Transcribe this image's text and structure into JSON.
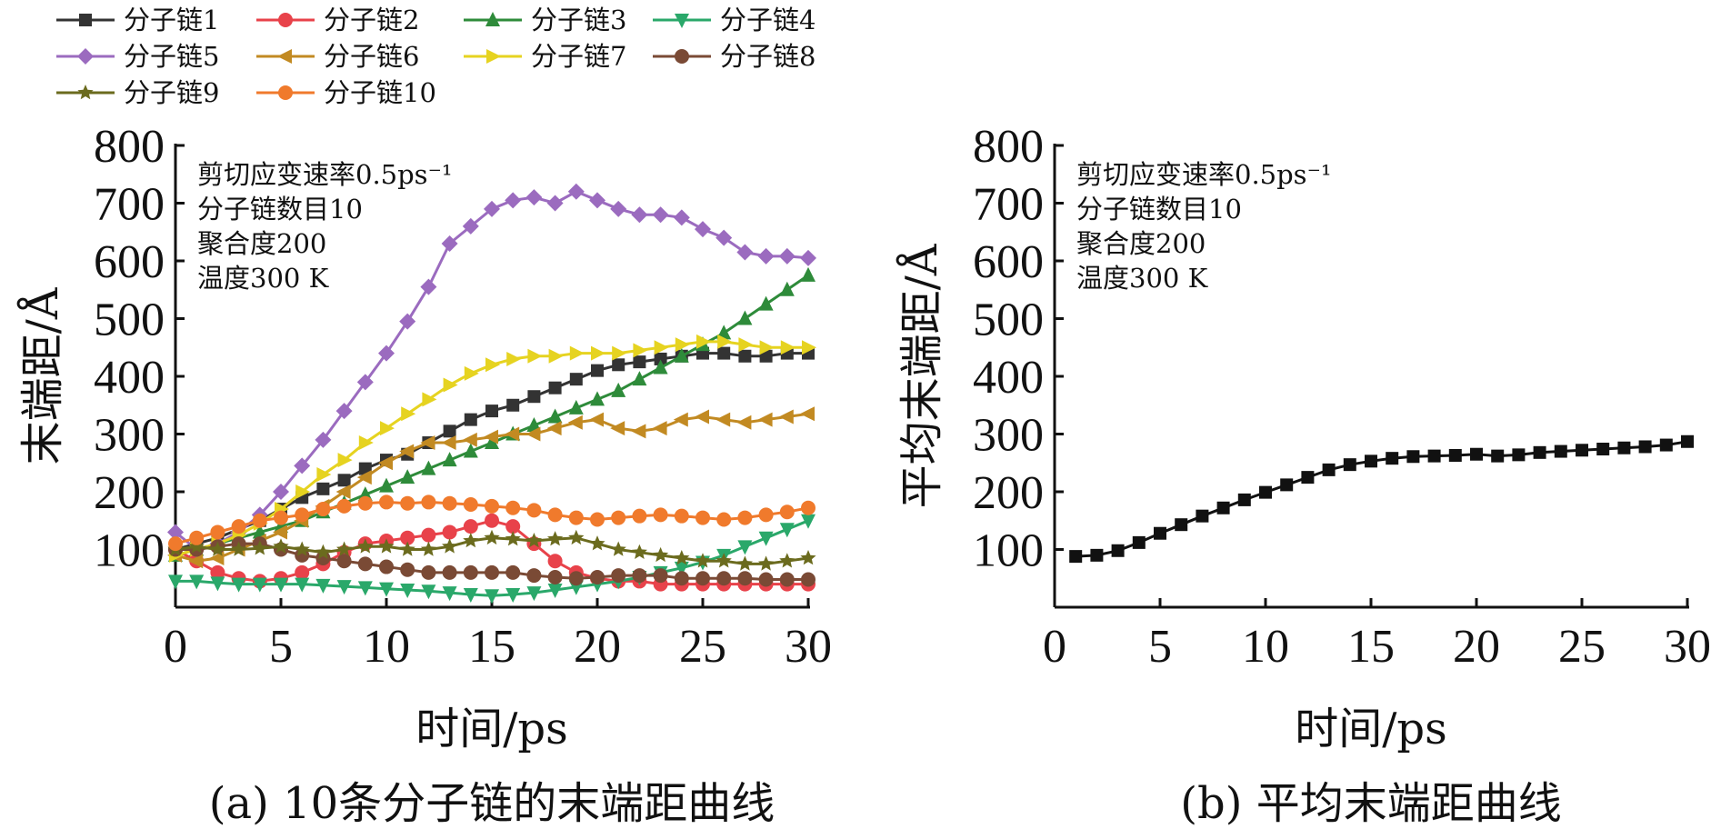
{
  "chart_data": [
    {
      "type": "line",
      "panel": "a",
      "caption": "(a) 10条分子链的末端距曲线",
      "xlabel": "时间/ps",
      "ylabel": "末端距/Å",
      "xlim": [
        0,
        30
      ],
      "ylim": [
        0,
        800
      ],
      "xticks": [
        "0",
        "5",
        "10",
        "15",
        "20",
        "25",
        "30"
      ],
      "yticks": [
        "100",
        "200",
        "300",
        "400",
        "500",
        "600",
        "700",
        "800"
      ],
      "annotation": [
        "剪切应变速率0.5ps⁻¹",
        "分子链数目10",
        "聚合度200",
        "温度300 K"
      ],
      "legend_position": "top",
      "x": [
        0,
        1,
        2,
        3,
        4,
        5,
        6,
        7,
        8,
        9,
        10,
        11,
        12,
        13,
        14,
        15,
        16,
        17,
        18,
        19,
        20,
        21,
        22,
        23,
        24,
        25,
        26,
        27,
        28,
        29,
        30
      ],
      "series": [
        {
          "name": "分子链1",
          "color": "#333333",
          "marker": "square",
          "values": [
            100,
            110,
            120,
            135,
            150,
            170,
            190,
            205,
            220,
            240,
            255,
            265,
            285,
            305,
            325,
            340,
            350,
            365,
            380,
            395,
            410,
            420,
            425,
            430,
            435,
            440,
            440,
            435,
            435,
            440,
            440
          ]
        },
        {
          "name": "分子链2",
          "color": "#e8424a",
          "marker": "circle",
          "values": [
            100,
            80,
            60,
            50,
            45,
            50,
            60,
            75,
            95,
            110,
            115,
            120,
            125,
            130,
            140,
            150,
            140,
            110,
            80,
            60,
            50,
            45,
            45,
            40,
            40,
            40,
            40,
            40,
            40,
            40,
            40
          ]
        },
        {
          "name": "分子链3",
          "color": "#2e8b3a",
          "marker": "triangle-up",
          "values": [
            90,
            100,
            110,
            120,
            130,
            140,
            150,
            165,
            180,
            195,
            210,
            225,
            240,
            255,
            270,
            285,
            300,
            315,
            330,
            345,
            360,
            375,
            395,
            415,
            435,
            455,
            475,
            500,
            525,
            550,
            575
          ]
        },
        {
          "name": "分子链4",
          "color": "#2aa86a",
          "marker": "triangle-down",
          "values": [
            45,
            45,
            42,
            40,
            40,
            40,
            40,
            38,
            36,
            34,
            32,
            30,
            28,
            25,
            22,
            20,
            22,
            25,
            30,
            35,
            40,
            45,
            52,
            60,
            68,
            78,
            90,
            105,
            120,
            135,
            150
          ]
        },
        {
          "name": "分子链5",
          "color": "#9b6bbf",
          "marker": "diamond",
          "values": [
            130,
            100,
            110,
            130,
            160,
            200,
            245,
            290,
            340,
            390,
            440,
            495,
            555,
            630,
            660,
            690,
            705,
            710,
            700,
            720,
            705,
            690,
            680,
            680,
            675,
            655,
            640,
            615,
            608,
            608,
            605
          ]
        },
        {
          "name": "分子链6",
          "color": "#c28a22",
          "marker": "triangle-left",
          "values": [
            90,
            80,
            85,
            100,
            115,
            130,
            150,
            175,
            200,
            225,
            250,
            270,
            285,
            285,
            290,
            295,
            300,
            300,
            310,
            320,
            325,
            310,
            305,
            310,
            325,
            330,
            325,
            320,
            325,
            330,
            335
          ]
        },
        {
          "name": "分子链7",
          "color": "#e6d320",
          "marker": "triangle-right",
          "values": [
            90,
            100,
            110,
            125,
            145,
            170,
            200,
            230,
            255,
            285,
            310,
            335,
            360,
            385,
            405,
            420,
            430,
            435,
            435,
            440,
            440,
            440,
            445,
            450,
            455,
            460,
            460,
            455,
            450,
            450,
            450
          ]
        },
        {
          "name": "分子链8",
          "color": "#7a4a35",
          "marker": "circle",
          "values": [
            100,
            100,
            105,
            110,
            110,
            100,
            90,
            85,
            80,
            75,
            70,
            65,
            60,
            60,
            60,
            60,
            60,
            55,
            52,
            50,
            52,
            55,
            55,
            55,
            50,
            50,
            50,
            50,
            48,
            48,
            48
          ]
        },
        {
          "name": "分子链9",
          "color": "#6b6b1e",
          "marker": "star",
          "values": [
            100,
            105,
            100,
            100,
            102,
            105,
            100,
            95,
            100,
            105,
            105,
            100,
            100,
            105,
            115,
            120,
            118,
            115,
            118,
            120,
            110,
            100,
            95,
            90,
            85,
            80,
            80,
            75,
            75,
            80,
            85
          ]
        },
        {
          "name": "分子链10",
          "color": "#f07a2c",
          "marker": "circle",
          "values": [
            110,
            120,
            130,
            140,
            150,
            155,
            160,
            170,
            175,
            180,
            182,
            180,
            182,
            180,
            178,
            175,
            172,
            168,
            160,
            155,
            152,
            155,
            158,
            160,
            158,
            155,
            152,
            155,
            160,
            165,
            172
          ]
        }
      ]
    },
    {
      "type": "line",
      "panel": "b",
      "caption": "(b) 平均末端距曲线",
      "xlabel": "时间/ps",
      "ylabel": "平均末端距/Å",
      "xlim": [
        0,
        30
      ],
      "ylim": [
        0,
        800
      ],
      "xticks": [
        "0",
        "5",
        "10",
        "15",
        "20",
        "25",
        "30"
      ],
      "yticks": [
        "100",
        "200",
        "300",
        "400",
        "500",
        "600",
        "700",
        "800"
      ],
      "annotation": [
        "剪切应变速率0.5ps⁻¹",
        "分子链数目10",
        "聚合度200",
        "温度300 K"
      ],
      "series": [
        {
          "name": "",
          "color": "#111111",
          "marker": "square",
          "x": [
            1,
            2,
            3,
            4,
            5,
            6,
            7,
            8,
            9,
            10,
            11,
            12,
            13,
            14,
            15,
            16,
            17,
            18,
            19,
            20,
            21,
            22,
            23,
            24,
            25,
            26,
            27,
            28,
            29,
            30
          ],
          "values": [
            88,
            90,
            98,
            112,
            128,
            143,
            158,
            172,
            186,
            199,
            212,
            225,
            238,
            247,
            253,
            258,
            261,
            262,
            263,
            265,
            262,
            264,
            268,
            270,
            272,
            274,
            276,
            278,
            281,
            287
          ]
        }
      ]
    }
  ]
}
